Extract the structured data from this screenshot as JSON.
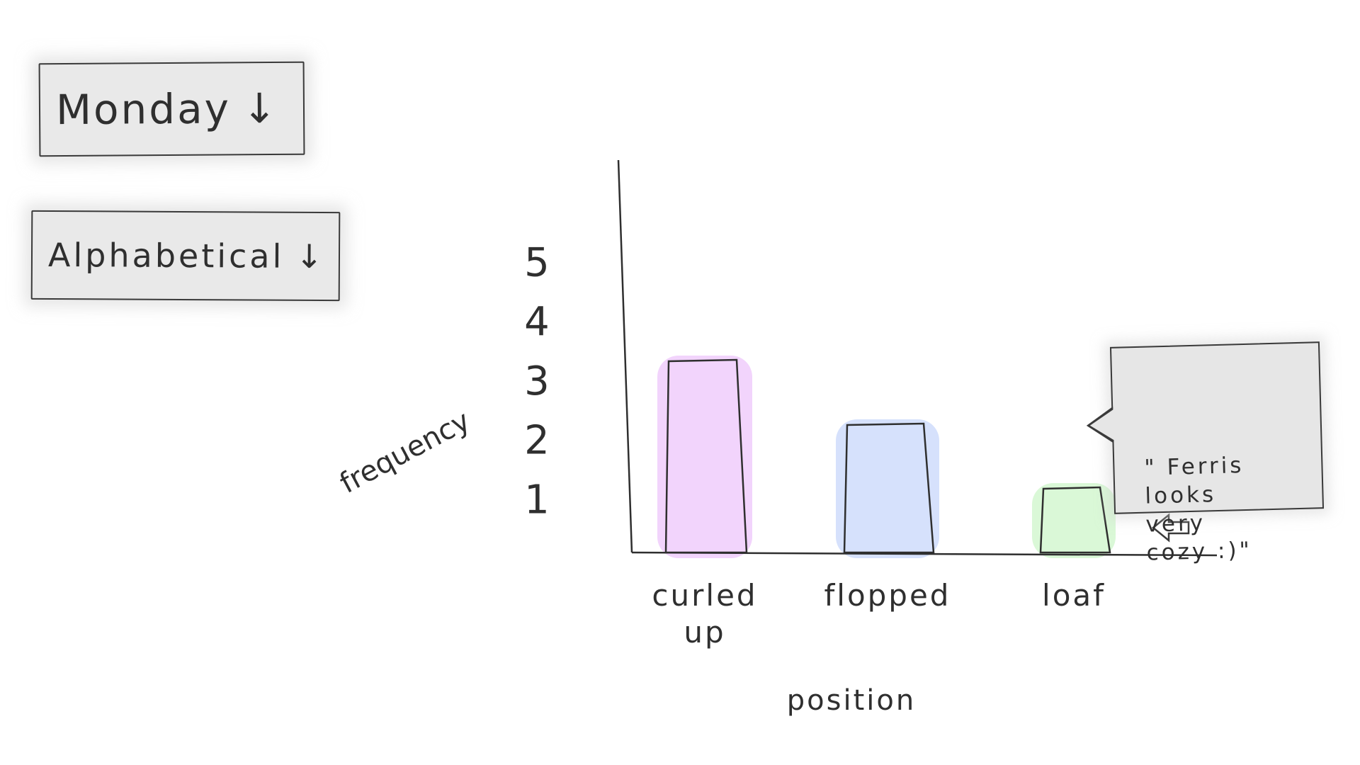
{
  "controls": {
    "day_dropdown": {
      "value": "Monday",
      "arrow": "↓"
    },
    "sort_dropdown": {
      "value": "Alphabetical",
      "arrow": "↓"
    }
  },
  "chart_data": {
    "type": "bar",
    "categories": [
      "curled up",
      "flopped",
      "loaf"
    ],
    "values": [
      3,
      2,
      1
    ],
    "xlabel": "position",
    "ylabel": "frequency",
    "ylim": [
      0,
      5
    ],
    "yticks": [
      1,
      2,
      3,
      4,
      5
    ],
    "colors": [
      "#f0cdfb",
      "#cfdcfb",
      "#d3f7d0"
    ],
    "grid": false
  },
  "annotation": {
    "text": "\" Ferris\nlooks\nvery\ncozy :)\"",
    "arrow": "⇦"
  }
}
